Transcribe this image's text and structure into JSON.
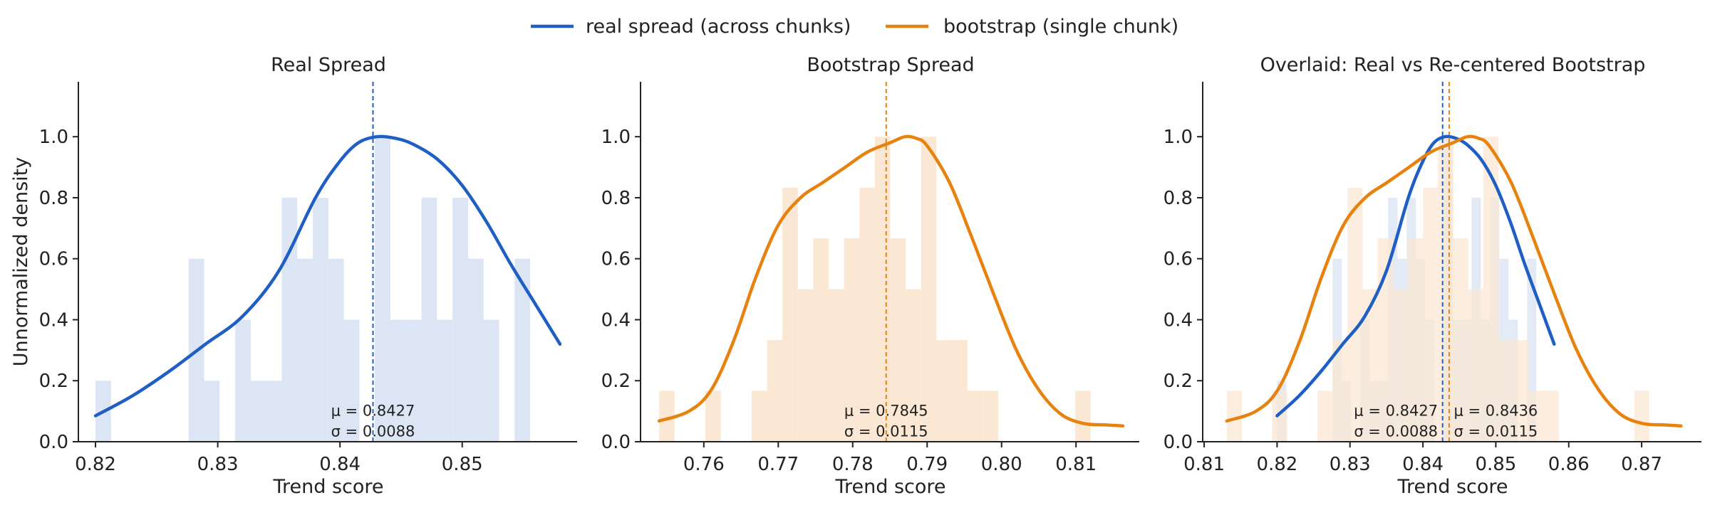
{
  "legend": {
    "items": [
      {
        "label": "real spread (across chunks)",
        "color": "#1f5fc5"
      },
      {
        "label": "bootstrap (single chunk)",
        "color": "#e8820e"
      }
    ]
  },
  "colors": {
    "real": "#1f5fc5",
    "real_hist": "#dce5f4",
    "bootstrap": "#e8820e",
    "bootstrap_hist": "#fbe8d4"
  },
  "chart_data": [
    {
      "type": "histogram+kde",
      "title": "Real Spread",
      "xlabel": "Trend score",
      "ylabel": "Unnormalized density",
      "xlim": [
        0.8186,
        0.8594
      ],
      "ylim": [
        0,
        1.18
      ],
      "xticks": [
        "0.82",
        "0.83",
        "0.84",
        "0.85"
      ],
      "yticks": [
        "0.0",
        "0.2",
        "0.4",
        "0.6",
        "0.8",
        "1.0"
      ],
      "grid": false,
      "series": [
        {
          "kind": "histogram",
          "color_key": "real_hist",
          "bin_start": 0.82,
          "bin_width": 0.00127,
          "values": [
            0.2,
            0,
            0,
            0,
            0,
            0,
            0.6,
            0.2,
            0,
            0.4,
            0.2,
            0.2,
            0.8,
            0.6,
            0.8,
            0.6,
            0.4,
            0,
            1.0,
            0.4,
            0.4,
            0.8,
            0.4,
            0.8,
            0.6,
            0.4,
            0,
            0.6,
            0
          ]
        },
        {
          "kind": "kde",
          "color_key": "real",
          "x": [
            0.82,
            0.823,
            0.826,
            0.829,
            0.832,
            0.835,
            0.838,
            0.84,
            0.8415,
            0.843,
            0.8445,
            0.846,
            0.848,
            0.85,
            0.852,
            0.854,
            0.856,
            0.858
          ],
          "y": [
            0.085,
            0.15,
            0.23,
            0.32,
            0.41,
            0.56,
            0.8,
            0.92,
            0.98,
            1.0,
            0.995,
            0.975,
            0.925,
            0.84,
            0.72,
            0.58,
            0.45,
            0.32
          ]
        },
        {
          "kind": "vline",
          "color_key": "real",
          "x": 0.8427
        }
      ],
      "annotations": [
        {
          "lines": [
            "μ = 0.8427",
            "σ = 0.0088"
          ],
          "x": 0.8427,
          "y": 0.085
        }
      ]
    },
    {
      "type": "histogram+kde",
      "title": "Bootstrap Spread",
      "xlabel": "Trend score",
      "ylabel": "",
      "xlim": [
        0.7515,
        0.8185
      ],
      "ylim": [
        0,
        1.18
      ],
      "xticks": [
        "0.76",
        "0.77",
        "0.78",
        "0.79",
        "0.80",
        "0.81"
      ],
      "yticks": [
        "0.0",
        "0.2",
        "0.4",
        "0.6",
        "0.8",
        "1.0"
      ],
      "grid": false,
      "series": [
        {
          "kind": "histogram",
          "color_key": "bootstrap_hist",
          "bin_start": 0.754,
          "bin_width": 0.00207,
          "values": [
            0.167,
            0,
            0,
            0.167,
            0,
            0,
            0.167,
            0.333,
            0.833,
            0.5,
            0.667,
            0.5,
            0.667,
            0.833,
            1.0,
            0.667,
            0.5,
            1.0,
            0.333,
            0.333,
            0.167,
            0.167,
            0,
            0,
            0,
            0,
            0,
            0.167,
            0
          ]
        },
        {
          "kind": "kde",
          "color_key": "bootstrap",
          "x": [
            0.754,
            0.758,
            0.761,
            0.764,
            0.767,
            0.77,
            0.773,
            0.776,
            0.779,
            0.782,
            0.785,
            0.787,
            0.7885,
            0.79,
            0.793,
            0.796,
            0.799,
            0.802,
            0.805,
            0.808,
            0.811,
            0.814,
            0.8163
          ],
          "y": [
            0.068,
            0.1,
            0.17,
            0.33,
            0.54,
            0.71,
            0.8,
            0.85,
            0.9,
            0.95,
            0.98,
            1.0,
            0.995,
            0.97,
            0.85,
            0.67,
            0.48,
            0.3,
            0.17,
            0.09,
            0.06,
            0.055,
            0.052
          ]
        },
        {
          "kind": "vline",
          "color_key": "bootstrap",
          "x": 0.7845
        }
      ],
      "annotations": [
        {
          "lines": [
            "μ = 0.7845",
            "σ = 0.0115"
          ],
          "x": 0.7845,
          "y": 0.085
        }
      ]
    },
    {
      "type": "histogram+kde",
      "title": "Overlaid: Real vs Re-centered Bootstrap",
      "xlabel": "Trend score",
      "ylabel": "",
      "xlim": [
        0.8098,
        0.8782
      ],
      "ylim": [
        0,
        1.18
      ],
      "xticks": [
        "0.81",
        "0.82",
        "0.83",
        "0.84",
        "0.85",
        "0.86",
        "0.87"
      ],
      "yticks": [
        "0.0",
        "0.2",
        "0.4",
        "0.6",
        "0.8",
        "1.0"
      ],
      "grid": false,
      "series": [
        {
          "kind": "histogram",
          "color_key": "real_hist",
          "opacity": 0.8,
          "bin_start": 0.82,
          "bin_width": 0.00127,
          "values": [
            0.2,
            0,
            0,
            0,
            0,
            0,
            0.6,
            0.2,
            0,
            0.4,
            0.2,
            0.2,
            0.8,
            0.6,
            0.8,
            0.6,
            0.4,
            0,
            1.0,
            0.4,
            0.4,
            0.8,
            0.4,
            0.8,
            0.6,
            0.4,
            0,
            0.6,
            0
          ]
        },
        {
          "kind": "histogram",
          "color_key": "bootstrap_hist",
          "opacity": 0.75,
          "bin_start": 0.8131,
          "bin_width": 0.00207,
          "values": [
            0.167,
            0,
            0,
            0.167,
            0,
            0,
            0.167,
            0.333,
            0.833,
            0.5,
            0.667,
            0.5,
            0.667,
            0.833,
            1.0,
            0.667,
            0.5,
            1.0,
            0.333,
            0.333,
            0.167,
            0.167,
            0,
            0,
            0,
            0,
            0,
            0.167,
            0
          ]
        },
        {
          "kind": "kde",
          "color_key": "real",
          "x": [
            0.82,
            0.823,
            0.826,
            0.829,
            0.832,
            0.835,
            0.838,
            0.84,
            0.8415,
            0.843,
            0.8445,
            0.846,
            0.848,
            0.85,
            0.852,
            0.854,
            0.856,
            0.858
          ],
          "y": [
            0.085,
            0.15,
            0.23,
            0.32,
            0.41,
            0.56,
            0.8,
            0.92,
            0.98,
            1.0,
            0.995,
            0.975,
            0.925,
            0.84,
            0.72,
            0.58,
            0.45,
            0.32
          ]
        },
        {
          "kind": "kde",
          "color_key": "bootstrap",
          "x": [
            0.8131,
            0.8171,
            0.8201,
            0.8231,
            0.8261,
            0.8291,
            0.8321,
            0.8351,
            0.8381,
            0.8411,
            0.8441,
            0.8461,
            0.8476,
            0.8491,
            0.8521,
            0.8551,
            0.8581,
            0.8611,
            0.8641,
            0.8671,
            0.8701,
            0.8731,
            0.8754
          ],
          "y": [
            0.068,
            0.1,
            0.17,
            0.33,
            0.54,
            0.71,
            0.8,
            0.85,
            0.9,
            0.95,
            0.98,
            1.0,
            0.995,
            0.97,
            0.85,
            0.67,
            0.48,
            0.3,
            0.17,
            0.09,
            0.06,
            0.055,
            0.052
          ]
        },
        {
          "kind": "vline",
          "color_key": "real",
          "x": 0.8427
        },
        {
          "kind": "vline",
          "color_key": "bootstrap",
          "x": 0.8436
        }
      ],
      "annotations": [
        {
          "lines": [
            "μ = 0.8427",
            "σ = 0.0088"
          ],
          "x": 0.8363,
          "y": 0.085
        },
        {
          "lines": [
            "μ = 0.8436",
            "σ = 0.0115"
          ],
          "x": 0.85,
          "y": 0.085
        }
      ]
    }
  ]
}
